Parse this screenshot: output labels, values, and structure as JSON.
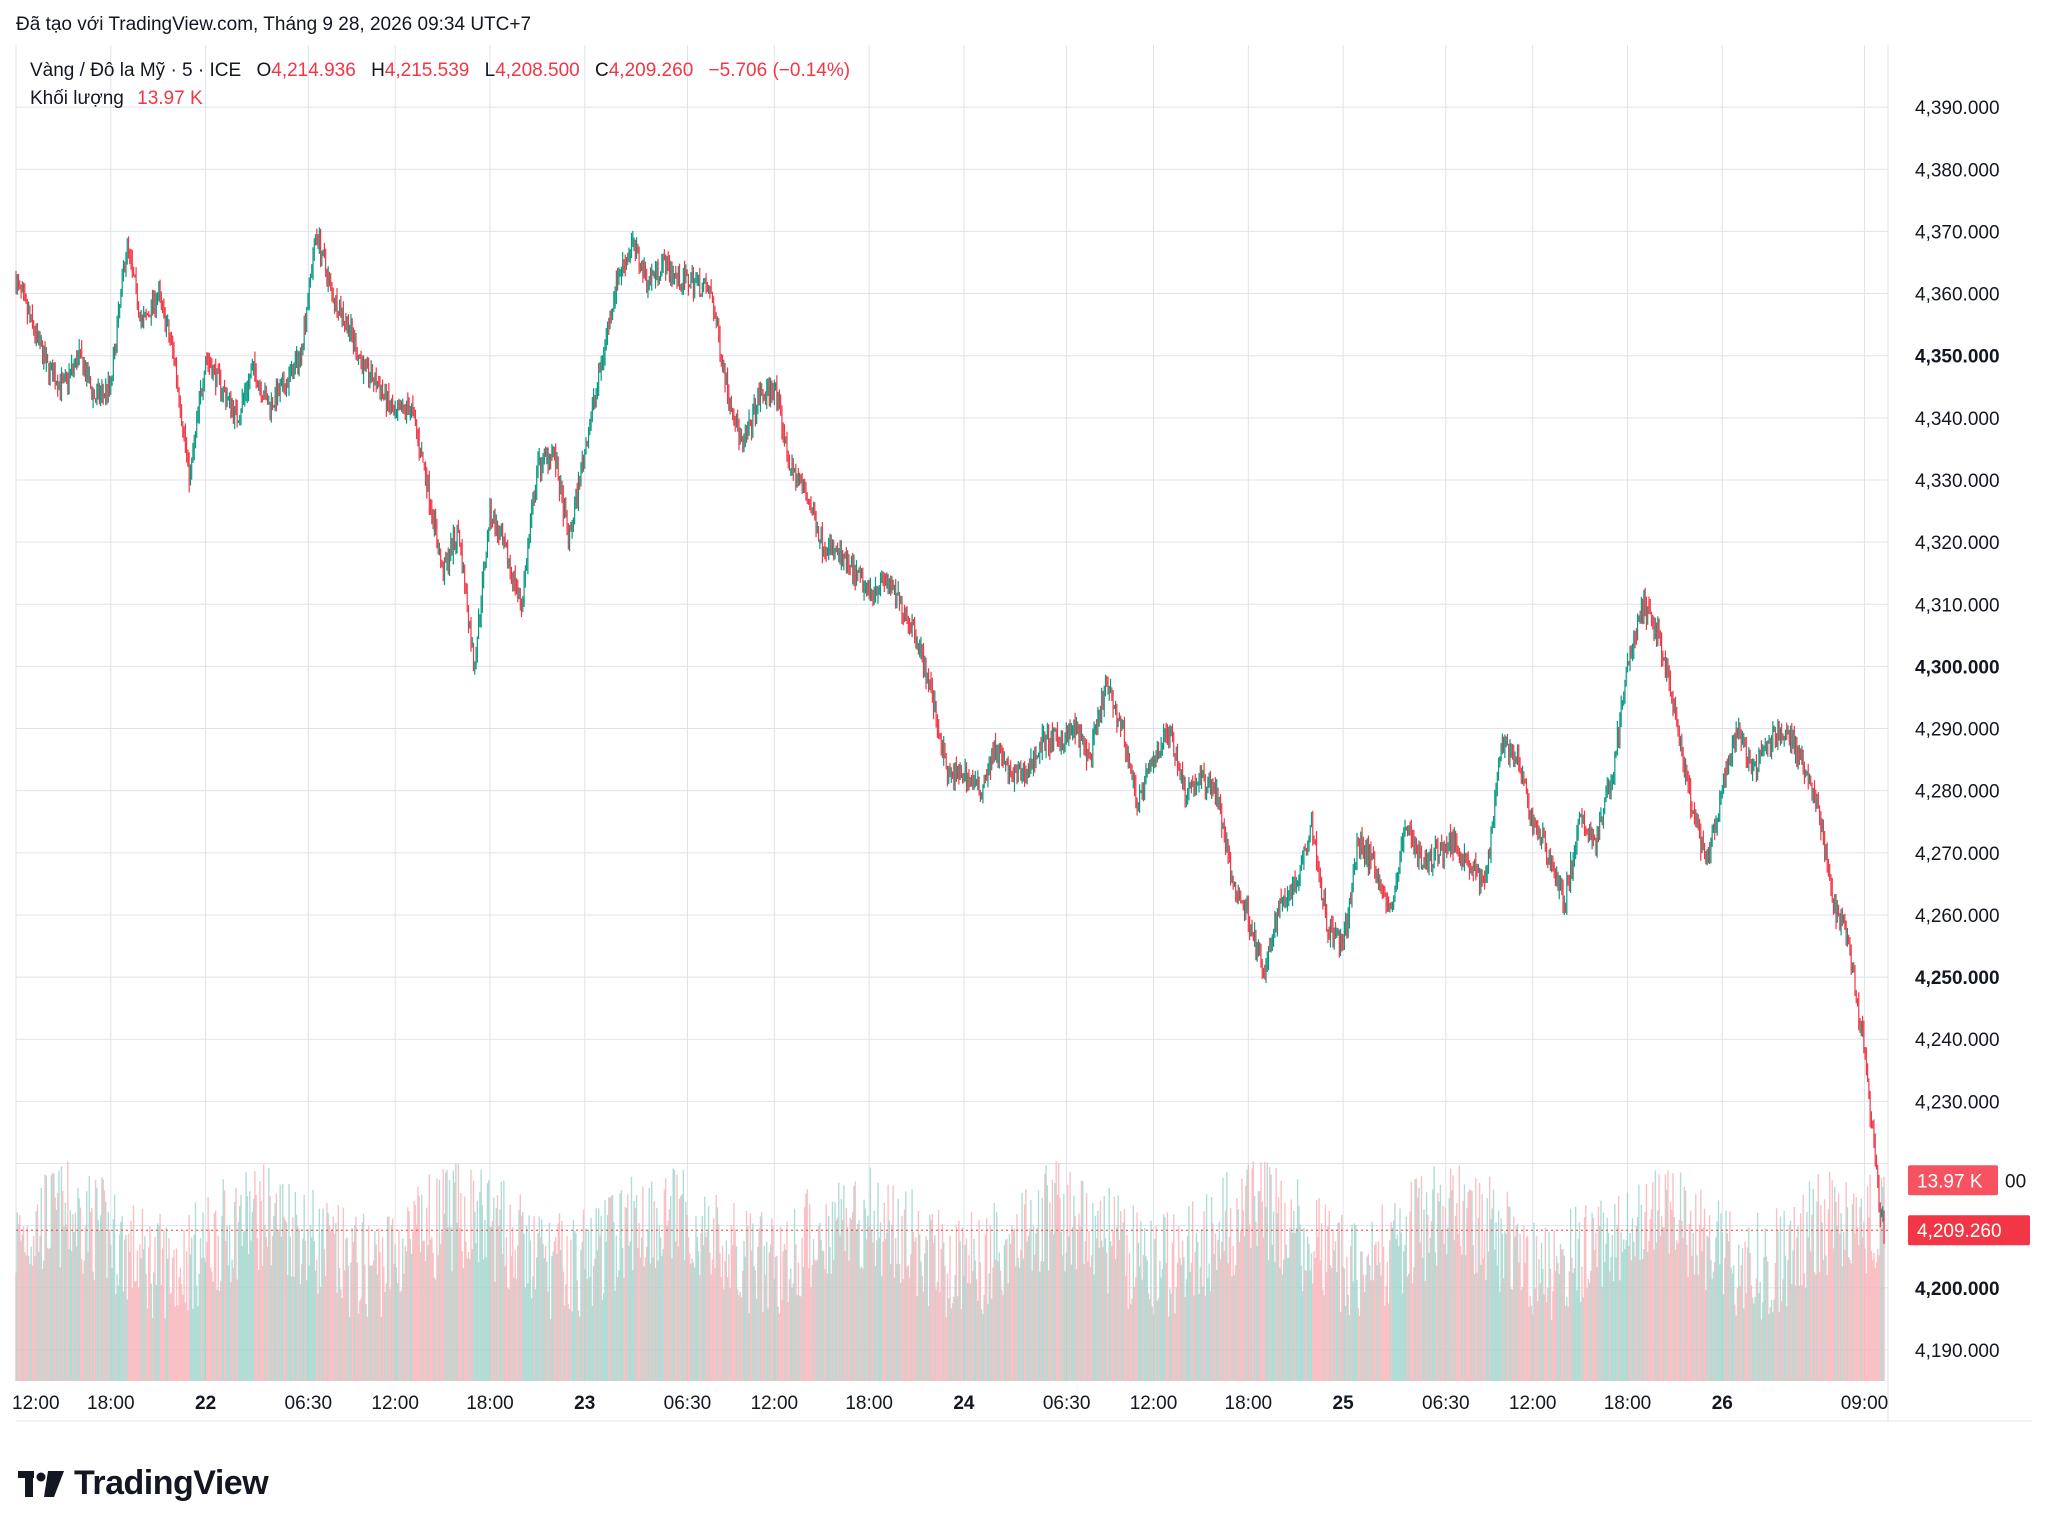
{
  "header": {
    "created": "Đã tạo với TradingView.com, Tháng 9 28, 2026 09:34 UTC+7"
  },
  "legend": {
    "symbol": "Vàng / Đô la Mỹ · 5 · ICE",
    "o_label": "O",
    "o_value": "4,214.936",
    "h_label": "H",
    "h_value": "4,215.539",
    "l_label": "L",
    "l_value": "4,208.500",
    "c_label": "C",
    "c_value": "4,209.260",
    "change": "−5.706 (−0.14%)",
    "volume_label": "Khối lượng",
    "volume_value": "13.97 K"
  },
  "badges": {
    "volume": "13.97 K",
    "price": "4,209.260"
  },
  "brand": {
    "name": "TradingView"
  },
  "colors": {
    "up": "#089981",
    "down": "#f23645",
    "grid": "#e0e3eb"
  },
  "chart_data": {
    "type": "candlestick",
    "symbol": "Vàng / Đô la Mỹ",
    "interval": "5",
    "ylim": [
      4185,
      4400
    ],
    "y_ticks": [
      {
        "value": 4390,
        "label": "4,390.000",
        "bold": false
      },
      {
        "value": 4380,
        "label": "4,380.000",
        "bold": false
      },
      {
        "value": 4370,
        "label": "4,370.000",
        "bold": false
      },
      {
        "value": 4360,
        "label": "4,360.000",
        "bold": false
      },
      {
        "value": 4350,
        "label": "4,350.000",
        "bold": true
      },
      {
        "value": 4340,
        "label": "4,340.000",
        "bold": false
      },
      {
        "value": 4330,
        "label": "4,330.000",
        "bold": false
      },
      {
        "value": 4320,
        "label": "4,320.000",
        "bold": false
      },
      {
        "value": 4310,
        "label": "4,310.000",
        "bold": false
      },
      {
        "value": 4300,
        "label": "4,300.000",
        "bold": true
      },
      {
        "value": 4290,
        "label": "4,290.000",
        "bold": false
      },
      {
        "value": 4280,
        "label": "4,280.000",
        "bold": false
      },
      {
        "value": 4270,
        "label": "4,270.000",
        "bold": false
      },
      {
        "value": 4260,
        "label": "4,260.000",
        "bold": false
      },
      {
        "value": 4250,
        "label": "4,250.000",
        "bold": true
      },
      {
        "value": 4240,
        "label": "4,240.000",
        "bold": false
      },
      {
        "value": 4230,
        "label": "4,230.000",
        "bold": false
      },
      {
        "value": 4220,
        "label": "",
        "bold": false
      },
      {
        "value": 4210,
        "label": "",
        "bold": false
      },
      {
        "value": 4200,
        "label": "4,200.000",
        "bold": true
      },
      {
        "value": 4190,
        "label": "4,190.000",
        "bold": false
      }
    ],
    "x_ticks": [
      {
        "t": 0,
        "label": "12:00",
        "bold": false
      },
      {
        "t": 6,
        "label": "18:00",
        "bold": false
      },
      {
        "t": 12,
        "label": "22",
        "bold": true
      },
      {
        "t": 18.5,
        "label": "06:30",
        "bold": false
      },
      {
        "t": 24,
        "label": "12:00",
        "bold": false
      },
      {
        "t": 30,
        "label": "18:00",
        "bold": false
      },
      {
        "t": 36,
        "label": "23",
        "bold": true
      },
      {
        "t": 42.5,
        "label": "06:30",
        "bold": false
      },
      {
        "t": 48,
        "label": "12:00",
        "bold": false
      },
      {
        "t": 54,
        "label": "18:00",
        "bold": false
      },
      {
        "t": 60,
        "label": "24",
        "bold": true
      },
      {
        "t": 66.5,
        "label": "06:30",
        "bold": false
      },
      {
        "t": 72,
        "label": "12:00",
        "bold": false
      },
      {
        "t": 78,
        "label": "18:00",
        "bold": false
      },
      {
        "t": 84,
        "label": "25",
        "bold": true
      },
      {
        "t": 90.5,
        "label": "06:30",
        "bold": false
      },
      {
        "t": 96,
        "label": "12:00",
        "bold": false
      },
      {
        "t": 102,
        "label": "18:00",
        "bold": false
      },
      {
        "t": 108,
        "label": "26",
        "bold": true
      },
      {
        "t": 117,
        "label": "09:00",
        "bold": false
      }
    ],
    "price_path": [
      [
        0,
        4362
      ],
      [
        1,
        4355
      ],
      [
        2,
        4348
      ],
      [
        3,
        4345
      ],
      [
        4,
        4350
      ],
      [
        5,
        4343
      ],
      [
        6,
        4345
      ],
      [
        7,
        4368
      ],
      [
        8,
        4355
      ],
      [
        9,
        4360
      ],
      [
        10,
        4350
      ],
      [
        11,
        4330
      ],
      [
        12,
        4350
      ],
      [
        13,
        4345
      ],
      [
        14,
        4340
      ],
      [
        15,
        4348
      ],
      [
        16,
        4342
      ],
      [
        17,
        4345
      ],
      [
        18,
        4350
      ],
      [
        19,
        4370
      ],
      [
        20,
        4360
      ],
      [
        21,
        4355
      ],
      [
        22,
        4348
      ],
      [
        23,
        4345
      ],
      [
        24,
        4340
      ],
      [
        25,
        4342
      ],
      [
        26,
        4330
      ],
      [
        27,
        4315
      ],
      [
        28,
        4322
      ],
      [
        29,
        4300
      ],
      [
        30,
        4325
      ],
      [
        31,
        4318
      ],
      [
        32,
        4310
      ],
      [
        33,
        4332
      ],
      [
        34,
        4335
      ],
      [
        35,
        4320
      ],
      [
        36,
        4335
      ],
      [
        37,
        4348
      ],
      [
        38,
        4362
      ],
      [
        39,
        4368
      ],
      [
        40,
        4362
      ],
      [
        41,
        4365
      ],
      [
        42,
        4362
      ],
      [
        43,
        4362
      ],
      [
        44,
        4360
      ],
      [
        45,
        4345
      ],
      [
        46,
        4335
      ],
      [
        47,
        4343
      ],
      [
        48,
        4345
      ],
      [
        49,
        4332
      ],
      [
        50,
        4328
      ],
      [
        51,
        4320
      ],
      [
        52,
        4318
      ],
      [
        53,
        4315
      ],
      [
        54,
        4312
      ],
      [
        55,
        4314
      ],
      [
        56,
        4310
      ],
      [
        57,
        4305
      ],
      [
        58,
        4295
      ],
      [
        59,
        4282
      ],
      [
        60,
        4283
      ],
      [
        61,
        4280
      ],
      [
        62,
        4287
      ],
      [
        63,
        4282
      ],
      [
        64,
        4283
      ],
      [
        65,
        4288
      ],
      [
        66,
        4288
      ],
      [
        67,
        4290
      ],
      [
        68,
        4285
      ],
      [
        69,
        4297
      ],
      [
        70,
        4290
      ],
      [
        71,
        4278
      ],
      [
        72,
        4285
      ],
      [
        73,
        4290
      ],
      [
        74,
        4280
      ],
      [
        75,
        4282
      ],
      [
        76,
        4280
      ],
      [
        77,
        4265
      ],
      [
        78,
        4260
      ],
      [
        79,
        4250
      ],
      [
        80,
        4262
      ],
      [
        81,
        4265
      ],
      [
        82,
        4275
      ],
      [
        83,
        4258
      ],
      [
        84,
        4255
      ],
      [
        85,
        4272
      ],
      [
        86,
        4268
      ],
      [
        87,
        4260
      ],
      [
        88,
        4275
      ],
      [
        89,
        4268
      ],
      [
        90,
        4270
      ],
      [
        91,
        4272
      ],
      [
        92,
        4268
      ],
      [
        93,
        4265
      ],
      [
        94,
        4288
      ],
      [
        95,
        4285
      ],
      [
        96,
        4275
      ],
      [
        97,
        4270
      ],
      [
        98,
        4262
      ],
      [
        99,
        4275
      ],
      [
        100,
        4272
      ],
      [
        101,
        4282
      ],
      [
        102,
        4300
      ],
      [
        103,
        4310
      ],
      [
        104,
        4305
      ],
      [
        105,
        4292
      ],
      [
        106,
        4278
      ],
      [
        107,
        4268
      ],
      [
        108,
        4280
      ],
      [
        109,
        4290
      ],
      [
        110,
        4283
      ],
      [
        111,
        4288
      ],
      [
        112,
        4290
      ],
      [
        113,
        4285
      ],
      [
        114,
        4278
      ],
      [
        115,
        4262
      ],
      [
        116,
        4255
      ],
      [
        117,
        4238
      ],
      [
        117.5,
        4225
      ],
      [
        118,
        4212
      ],
      [
        118.3,
        4209.26
      ]
    ],
    "volume": {
      "current": 13.97,
      "unit": "K"
    },
    "last_price": 4209.26
  }
}
